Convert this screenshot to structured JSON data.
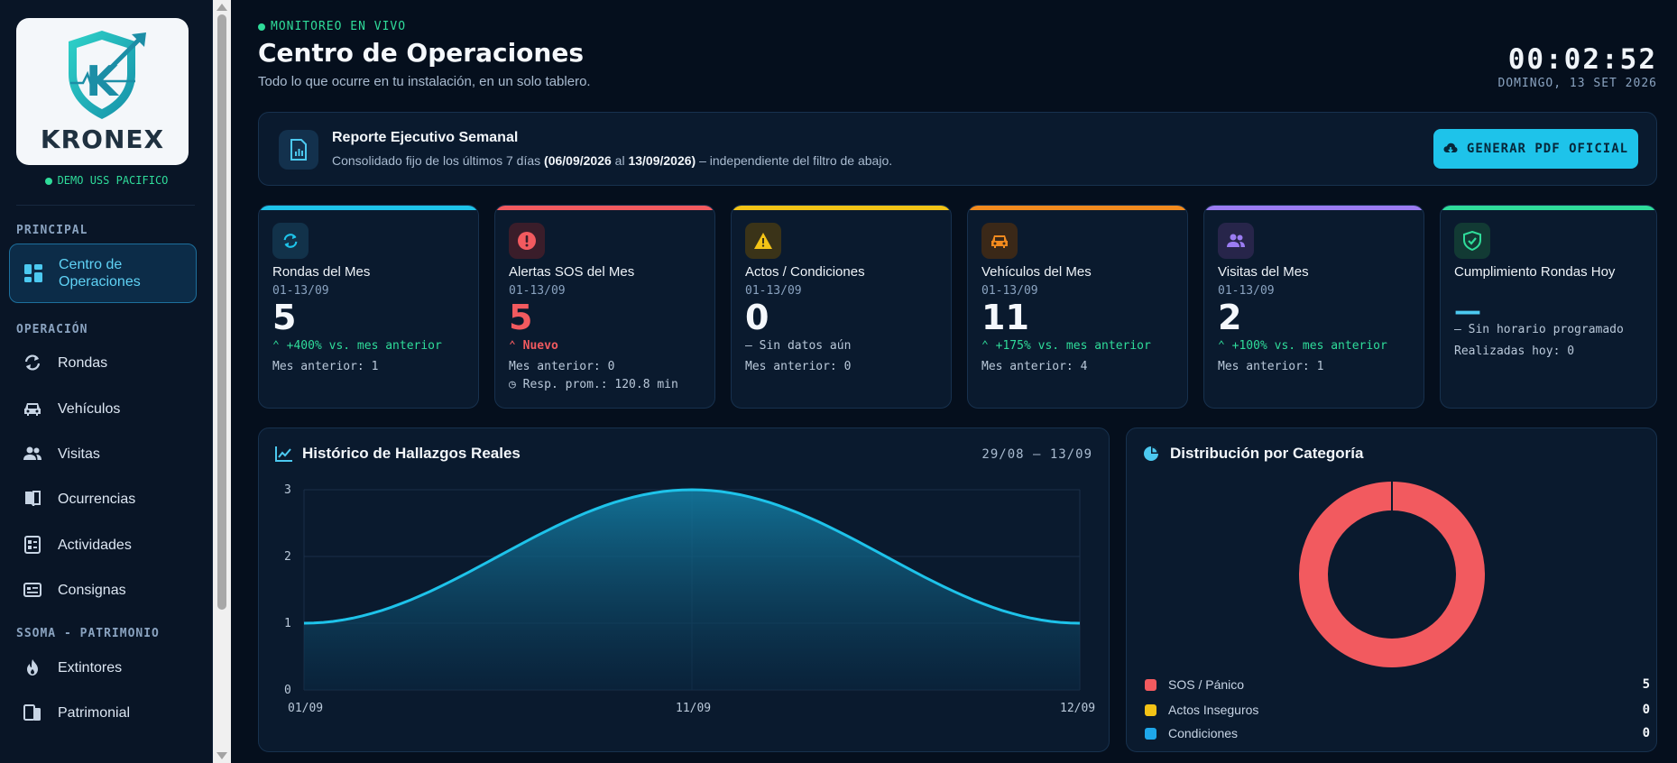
{
  "brand": {
    "name": "KRONEX",
    "tenant": "DEMO USS PACIFICO"
  },
  "sidebar": {
    "sections": [
      {
        "label": "PRINCIPAL"
      },
      {
        "label": "OPERACIÓN"
      },
      {
        "label": "SSOMA - PATRIMONIO"
      }
    ],
    "items": [
      {
        "label": "Centro de Operaciones",
        "icon": "dashboard-icon",
        "active": true
      },
      {
        "label": "Rondas",
        "icon": "refresh-icon"
      },
      {
        "label": "Vehículos",
        "icon": "car-icon"
      },
      {
        "label": "Visitas",
        "icon": "users-icon"
      },
      {
        "label": "Ocurrencias",
        "icon": "book-icon"
      },
      {
        "label": "Actividades",
        "icon": "checklist-icon"
      },
      {
        "label": "Consignas",
        "icon": "card-icon"
      },
      {
        "label": "Extintores",
        "icon": "flame-icon"
      },
      {
        "label": "Patrimonial",
        "icon": "devices-icon"
      }
    ]
  },
  "header": {
    "live": "MONITOREO EN VIVO",
    "title": "Centro de Operaciones",
    "subtitle": "Todo lo que ocurre en tu instalación, en un solo tablero.",
    "clock": "00:02:52",
    "date": "DOMINGO, 13 SET 2026"
  },
  "report": {
    "title": "Reporte Ejecutivo Semanal",
    "desc_prefix": "Consolidado fijo de los últimos 7 días ",
    "desc_range": "(06/09/2026",
    "desc_mid": " al ",
    "desc_range_end": "13/09/2026)",
    "desc_suffix": " – independiente del filtro de abajo.",
    "button": "GENERAR PDF OFICIAL"
  },
  "kpis": [
    {
      "title": "Rondas del Mes",
      "period": "01-13/09",
      "value": "5",
      "trend": "⌃ +400% vs. mes anterior",
      "prev": "Mes anterior: 1",
      "extra": "",
      "accent": "#1ec3ea",
      "icon": "refresh-icon",
      "trend_color": "#2fdc9a",
      "value_color": "#f4f7fb"
    },
    {
      "title": "Alertas SOS del Mes",
      "period": "01-13/09",
      "value": "5",
      "trend": "⌃ Nuevo",
      "prev": "Mes anterior: 0",
      "extra": "◷ Resp. prom.: 120.8 min",
      "accent": "#f25a5f",
      "icon": "alert-icon",
      "trend_color": "#f25a5f",
      "value_color": "#f25a5f"
    },
    {
      "title": "Actos / Condiciones",
      "period": "01-13/09",
      "value": "0",
      "trend": "– Sin datos aún",
      "prev": "Mes anterior: 0",
      "extra": "",
      "accent": "#f3c316",
      "icon": "warning-icon",
      "trend_color": "#b9c8d9",
      "value_color": "#f4f7fb"
    },
    {
      "title": "Vehículos del Mes",
      "period": "01-13/09",
      "value": "11",
      "trend": "⌃ +175% vs. mes anterior",
      "prev": "Mes anterior: 4",
      "extra": "",
      "accent": "#f28a1e",
      "icon": "car-icon",
      "trend_color": "#2fdc9a",
      "value_color": "#f4f7fb"
    },
    {
      "title": "Visitas del Mes",
      "period": "01-13/09",
      "value": "2",
      "trend": "⌃ +100% vs. mes anterior",
      "prev": "Mes anterior: 1",
      "extra": "",
      "accent": "#9b7cf2",
      "icon": "users-icon",
      "trend_color": "#2fdc9a",
      "value_color": "#f4f7fb"
    },
    {
      "title": "Cumplimiento Rondas Hoy",
      "period": "",
      "value": "—",
      "trend": "– Sin horario programado",
      "prev": "Realizadas hoy: 0",
      "extra": "",
      "accent": "#2fdc9a",
      "icon": "shield-check-icon",
      "trend_color": "#b9c8d9",
      "value_color": "#4cc9f0"
    }
  ],
  "history": {
    "title": "Histórico de Hallazgos Reales",
    "range": "29/08 – 13/09"
  },
  "distribution": {
    "title": "Distribución por Categoría",
    "legend": [
      {
        "name": "SOS / Pánico",
        "value": "5",
        "color": "#f25a5f"
      },
      {
        "name": "Actos Inseguros",
        "value": "0",
        "color": "#f3c316"
      },
      {
        "name": "Condiciones",
        "value": "0",
        "color": "#1ea7ea"
      }
    ]
  },
  "chart_data": [
    {
      "type": "area",
      "x": [
        "01/09",
        "11/09",
        "12/09"
      ],
      "values": [
        1,
        3,
        1
      ],
      "ylim": [
        0,
        3
      ],
      "yticks": [
        "0",
        "1",
        "2",
        "3"
      ],
      "grid": true,
      "color": "#1ec3ea"
    },
    {
      "type": "pie",
      "categories": [
        "SOS / Pánico",
        "Actos Inseguros",
        "Condiciones"
      ],
      "values": [
        5,
        0,
        0
      ],
      "colors": [
        "#f25a5f",
        "#f3c316",
        "#1ea7ea"
      ],
      "donut": true
    }
  ]
}
